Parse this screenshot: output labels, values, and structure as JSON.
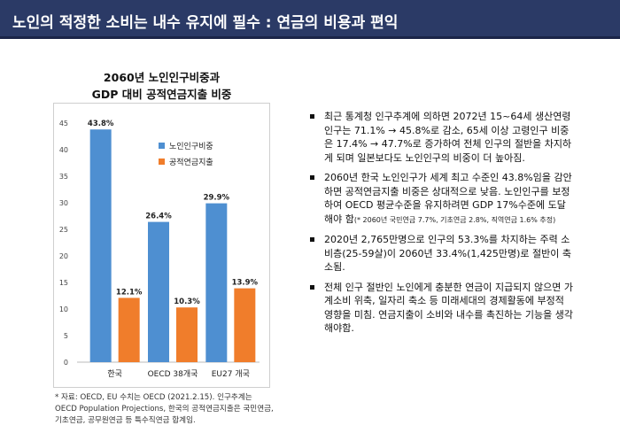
{
  "header": {
    "title": "노인의 적정한 소비는 내수 유지에 필수 : 연금의 비용과 편익"
  },
  "chart": {
    "title_line1": "2060년 노인인구비중과",
    "title_line2": "GDP 대비 공적연금지출 비중"
  },
  "colors": {
    "header_bg": "#2b3a66",
    "series_elderly": "#4e8fd1",
    "series_pension": "#f07d2b"
  },
  "chart_data": {
    "type": "bar",
    "title": "2060년 노인인구비중과 GDP 대비 공적연금지출 비중",
    "categories": [
      "한국",
      "OECD 38개국",
      "EU27 개국"
    ],
    "series": [
      {
        "name": "노인인구비중",
        "values": [
          43.8,
          26.4,
          29.9
        ],
        "labels": [
          "43.8%",
          "26.4%",
          "29.9%"
        ],
        "color": "#4e8fd1"
      },
      {
        "name": "공적연금지출",
        "values": [
          12.1,
          10.3,
          13.9
        ],
        "labels": [
          "12.1%",
          "10.3%",
          "13.9%"
        ],
        "color": "#f07d2b"
      }
    ],
    "ylim": [
      0,
      45
    ],
    "yticks": [
      0,
      5,
      10,
      15,
      20,
      25,
      30,
      35,
      40,
      45
    ],
    "grid": false,
    "legend": "upper-center"
  },
  "footnote": "* 자료: OECD, EU 수치는 OECD (2021.2.15). 인구추계는 OECD Population Projections, 한국의 공적연금지출은 국민연금, 기초연금, 공무원연금 등 특수직연금 합계임.",
  "bullets": [
    {
      "text": "최근 통계청 인구추계에 의하면 2072년 15~64세 생산연령인구는 71.1% → 45.8%로 감소, 65세 이상 고령인구 비중은 17.4% → 47.7%로 증가하여 전체 인구의 절반을 차지하게 되며 일본보다도 노인인구의 비중이 더 높아짐.",
      "note": ""
    },
    {
      "text": "2060년 한국 노인인구가 세계 최고 수준인 43.8%임을 감안하면 공적연금지출 비중은 상대적으로 낮음. 노인인구를 보정하여 OECD 평균수준을 유지하려면 GDP 17%수준에 도달해야 함",
      "note": "(* 2060년 국민연금 7.7%, 기초연금 2.8%, 직역연금 1.6% 추정)"
    },
    {
      "text": "2020년 2,765만명으로 인구의 53.3%를 차지하는 주력 소비층(25-59살)이 2060년 33.4%(1,425만명)로 절반이 축소됨.",
      "note": ""
    },
    {
      "text": "전체 인구 절반인 노인에게 충분한 연금이 지급되지 않으면 가계소비 위축, 일자리 축소 등 미래세대의 경제활동에 부정적 영향을 미침. 연금지출이 소비와 내수를 촉진하는 기능을 생각해야함.",
      "note": ""
    }
  ]
}
